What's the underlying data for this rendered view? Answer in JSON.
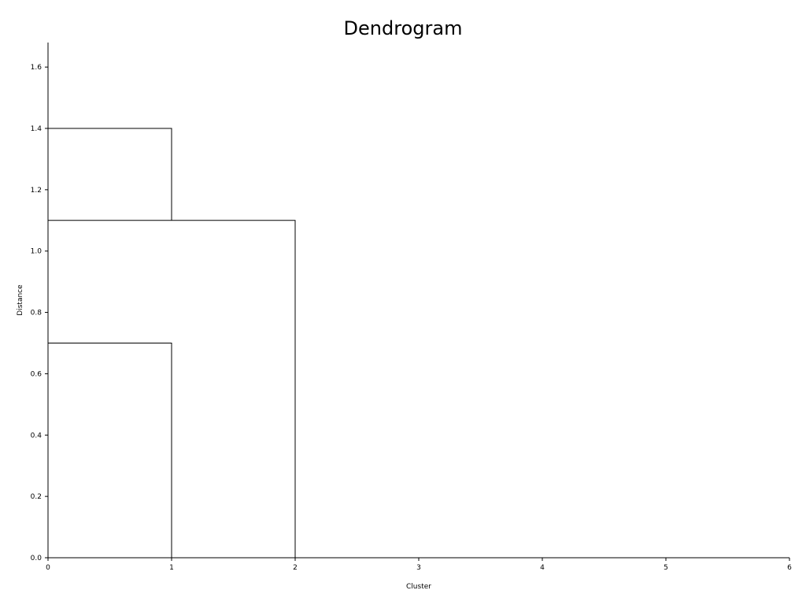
{
  "chart_data": {
    "type": "dendrogram",
    "title": "Dendrogram",
    "xlabel": "Cluster",
    "ylabel": "Distance",
    "xlim": [
      0,
      6
    ],
    "ylim": [
      0,
      1.68
    ],
    "x_ticks": [
      "0",
      "1",
      "2",
      "3",
      "4",
      "5",
      "6"
    ],
    "y_ticks": [
      "0.0",
      "0.2",
      "0.4",
      "0.6",
      "0.8",
      "1.0",
      "1.2",
      "1.4",
      "1.6"
    ],
    "grid": false,
    "links": [
      {
        "x": [
          0,
          0,
          1,
          1
        ],
        "y": [
          0.0,
          0.7,
          0.7,
          0.0
        ]
      },
      {
        "x": [
          0,
          0,
          2,
          2
        ],
        "y": [
          0.0,
          1.1,
          1.1,
          0.0
        ]
      },
      {
        "x": [
          0,
          0,
          1,
          1
        ],
        "y": [
          0.0,
          1.4,
          1.4,
          1.1
        ]
      }
    ],
    "line_color": "#000000"
  }
}
